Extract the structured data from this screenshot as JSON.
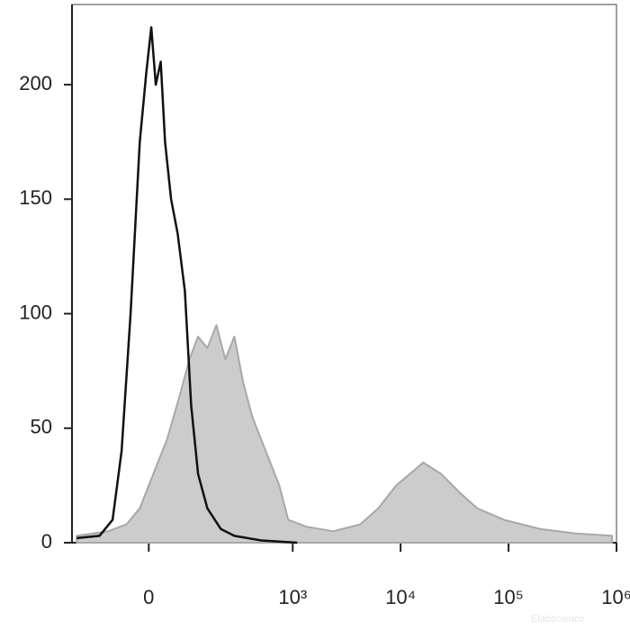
{
  "chart_data": {
    "type": "histogram-overlay",
    "xscale": "biexponential",
    "xlim": [
      -230,
      1000000
    ],
    "xticks": [
      0,
      {
        "value": 1000,
        "label": "10³"
      },
      {
        "value": 10000,
        "label": "10⁴"
      },
      {
        "value": 100000,
        "label": "10⁵"
      },
      {
        "value": 1000000,
        "label": "10⁶"
      }
    ],
    "ylim": [
      0,
      235
    ],
    "yticks": [
      0,
      50,
      100,
      150,
      200
    ],
    "watermark": "Elabscience",
    "series": [
      {
        "color": "#cccccc",
        "edge_color": "#a8a8a8",
        "filled": true,
        "x": [
          -206,
          -91,
          -46,
          -18,
          9,
          37,
          67,
          91,
          117,
          149,
          186,
          229,
          281,
          342,
          418,
          560,
          749,
          909,
          1336,
          2380,
          4230,
          6210,
          9110,
          12160,
          16220,
          23800,
          35000,
          51300,
          91200,
          196000,
          422000,
          911000
        ],
        "values": [
          3,
          5,
          8,
          15,
          30,
          45,
          65,
          80,
          90,
          85,
          95,
          80,
          90,
          70,
          55,
          40,
          25,
          10,
          7,
          5,
          8,
          15,
          25,
          30,
          35,
          30,
          22,
          15,
          10,
          6,
          4,
          3
        ]
      },
      {
        "color": "#111111",
        "filled": false,
        "x": [
          -206,
          -117,
          -79,
          -57,
          -37,
          -18,
          -5,
          5,
          14,
          24,
          33,
          46,
          61,
          79,
          96,
          117,
          149,
          206,
          281,
          508,
          1102
        ],
        "values": [
          2,
          3,
          10,
          40,
          100,
          175,
          205,
          225,
          200,
          210,
          175,
          150,
          135,
          110,
          60,
          30,
          15,
          6,
          3,
          1,
          0
        ]
      }
    ]
  }
}
